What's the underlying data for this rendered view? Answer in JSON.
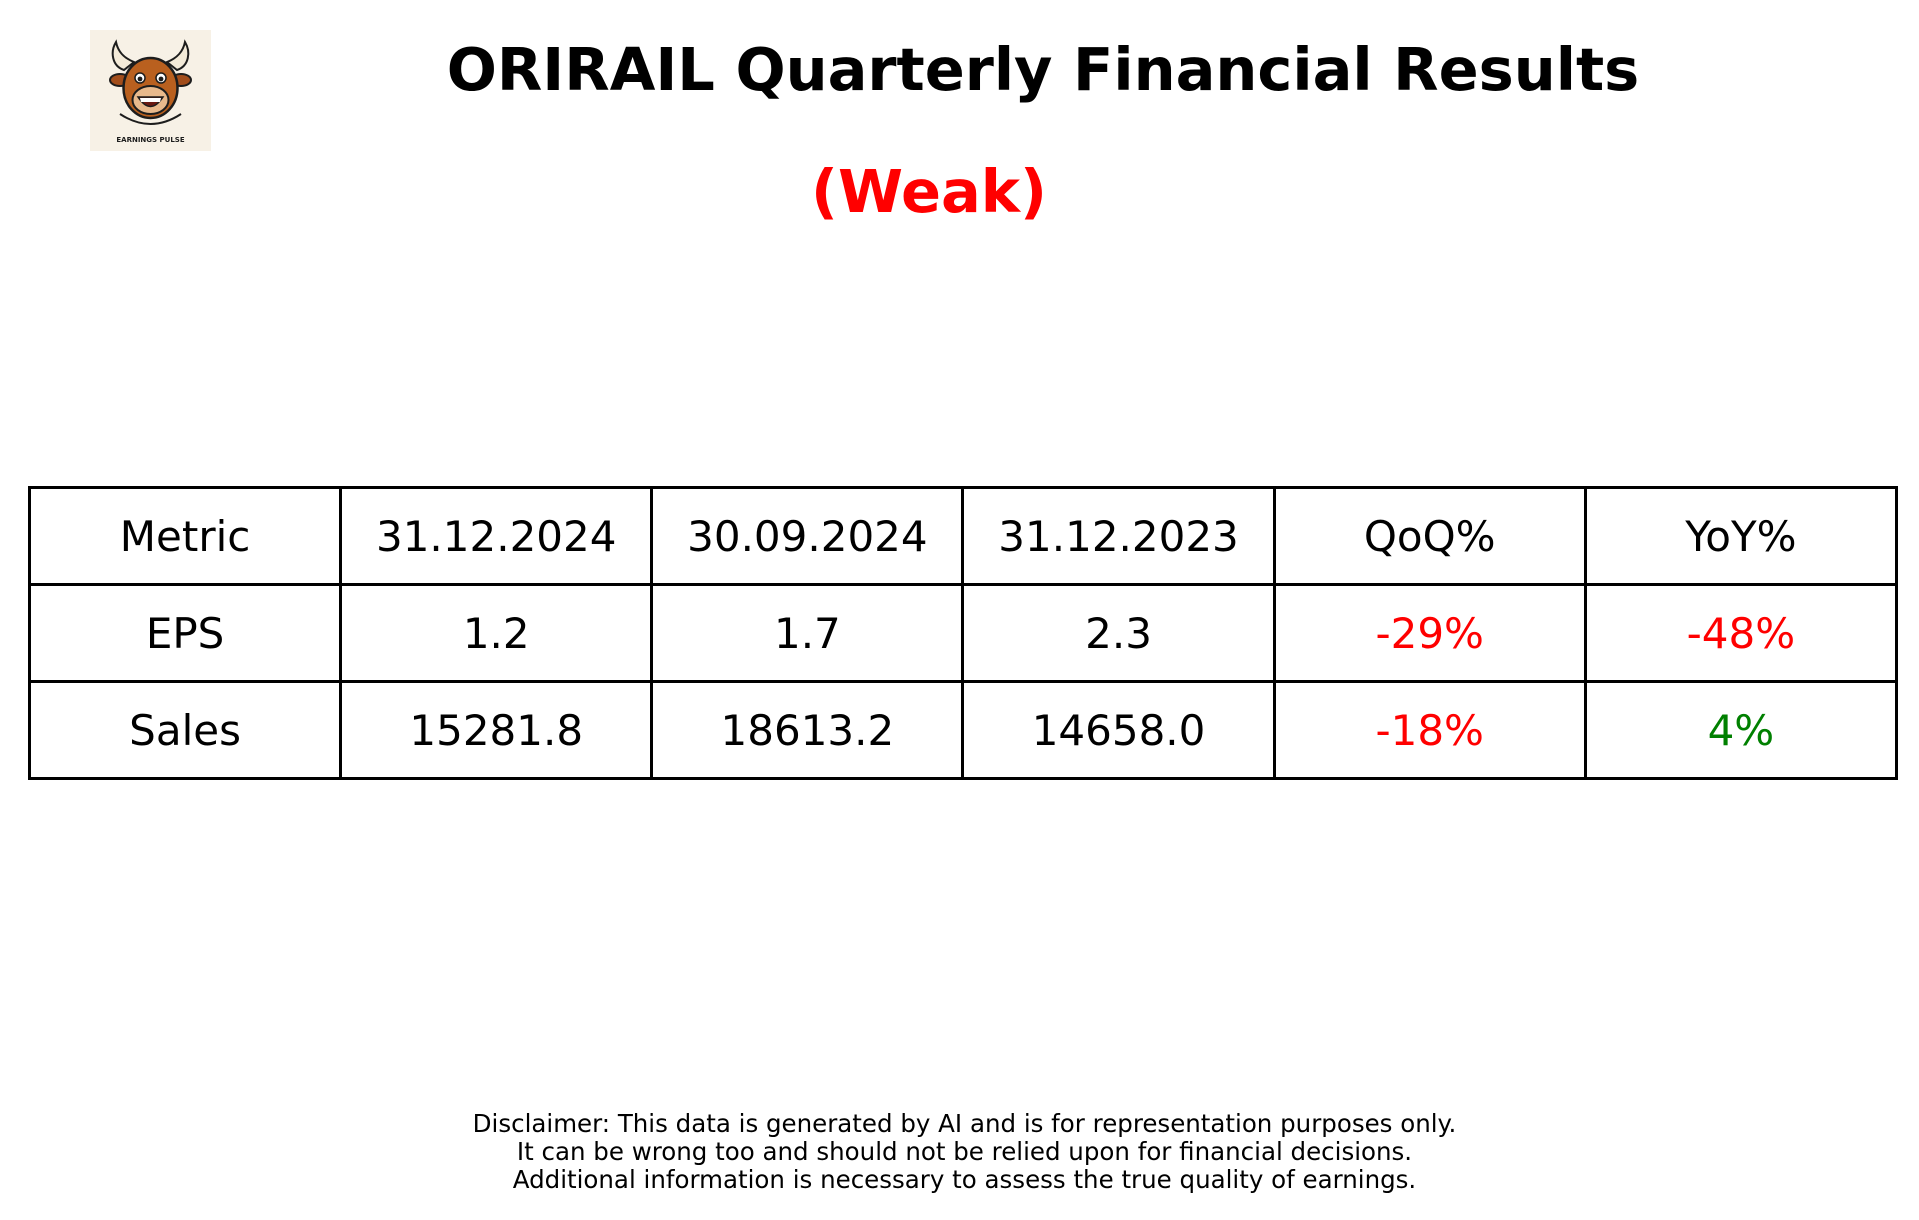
{
  "header": {
    "title": "ORIRAIL Quarterly Financial Results",
    "rating": "(Weak)",
    "rating_color": "#ff0000"
  },
  "logo": {
    "icon": "bull-mascot-icon",
    "text": "EARNINGS PULSE"
  },
  "table": {
    "headers": [
      "Metric",
      "31.12.2024",
      "30.09.2024",
      "31.12.2023",
      "QoQ%",
      "YoY%"
    ],
    "rows": [
      {
        "cells": [
          "EPS",
          "1.2",
          "1.7",
          "2.3",
          "-29%",
          "-48%"
        ],
        "colors": [
          "#000000",
          "#000000",
          "#000000",
          "#000000",
          "#ff0000",
          "#ff0000"
        ]
      },
      {
        "cells": [
          "Sales",
          "15281.8",
          "18613.2",
          "14658.0",
          "-18%",
          "4%"
        ],
        "colors": [
          "#000000",
          "#000000",
          "#000000",
          "#000000",
          "#ff0000",
          "#008000"
        ]
      }
    ]
  },
  "disclaimer": {
    "lines": [
      "Disclaimer: This data is generated by AI and is for representation purposes only.",
      "It can be wrong too and should not be relied upon for financial decisions.",
      "Additional information is necessary to assess the true quality of earnings."
    ]
  }
}
